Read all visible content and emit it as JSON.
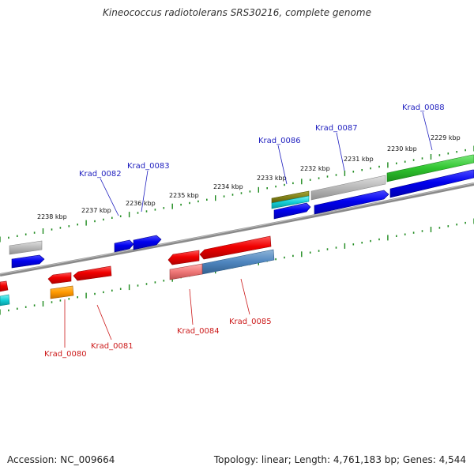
{
  "title": "Kineococcus radiotolerans SRS30216, complete genome",
  "footer": {
    "accession": "Accession: NC_009664",
    "summary": "Topology: linear; Length: 4,761,183 bp; Genes: 4,544"
  },
  "colors": {
    "backbone": "#777777",
    "tick": "#1e8a1e",
    "label_top": "#1f1fbf",
    "label_bottom": "#cc1a1a"
  },
  "scale": {
    "labels": [
      "2229 kbp",
      "2230 kbp",
      "2231 kbp",
      "2232 kbp",
      "2233 kbp",
      "2234 kbp",
      "2235 kbp",
      "2236 kbp",
      "2237 kbp",
      "2238 kbp"
    ]
  },
  "gene_labels": {
    "top": [
      "Krad_0088",
      "Krad_0087",
      "Krad_0086",
      "Krad_0083",
      "Krad_0082"
    ],
    "bottom": [
      "Krad_0080",
      "Krad_0081",
      "Krad_0084",
      "Krad_0085"
    ]
  }
}
